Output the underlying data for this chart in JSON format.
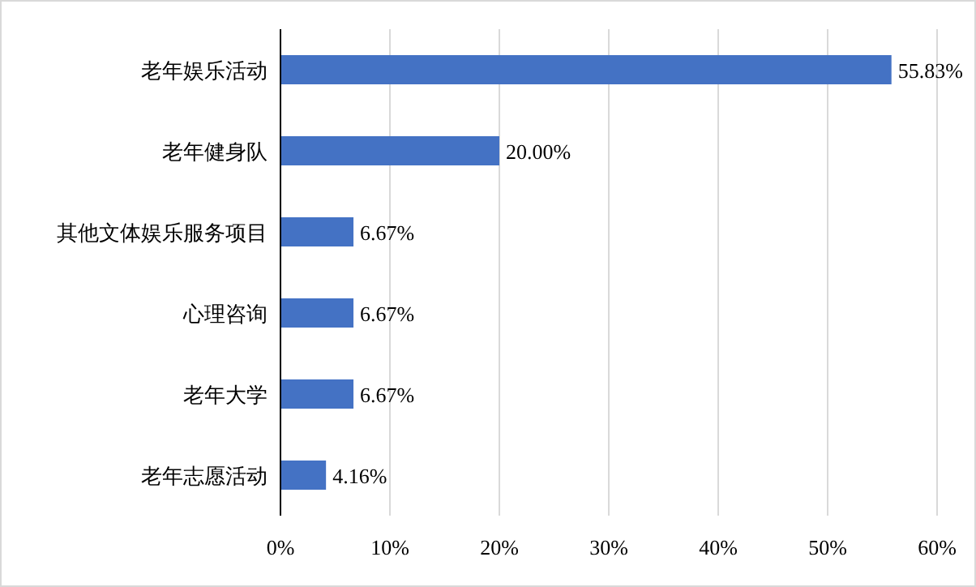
{
  "chart_data": {
    "type": "bar",
    "orientation": "horizontal",
    "categories": [
      "老年娱乐活动",
      "老年健身队",
      "其他文体娱乐服务项目",
      "心理咨询",
      "老年大学",
      "老年志愿活动"
    ],
    "values": [
      55.83,
      20.0,
      6.67,
      6.67,
      6.67,
      4.16
    ],
    "value_labels": [
      "55.83%",
      "20.00%",
      "6.67%",
      "6.67%",
      "6.67%",
      "4.16%"
    ],
    "color": "#4472c4",
    "xlim": [
      0,
      60
    ],
    "xticks": [
      {
        "value": 0,
        "label": "0%"
      },
      {
        "value": 10,
        "label": "10%"
      },
      {
        "value": 20,
        "label": "20%"
      },
      {
        "value": 30,
        "label": "30%"
      },
      {
        "value": 40,
        "label": "40%"
      },
      {
        "value": 50,
        "label": "50%"
      },
      {
        "value": 60,
        "label": "60%"
      }
    ],
    "grid": "x"
  }
}
